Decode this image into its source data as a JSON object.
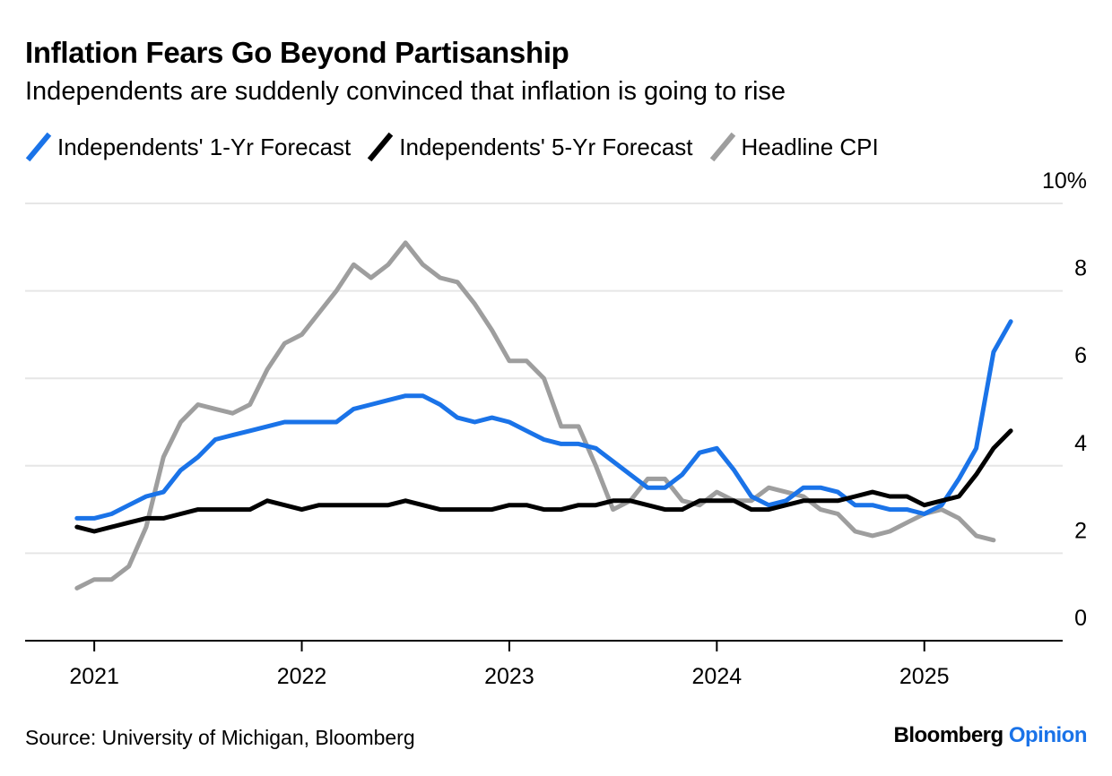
{
  "header": {
    "title": "Inflation Fears Go Beyond Partisanship",
    "subtitle": "Independents are suddenly convinced that inflation is going to rise"
  },
  "footer": {
    "source": "Source: University of Michigan, Bloomberg",
    "brand_main": "Bloomberg",
    "brand_accent": "Opinion"
  },
  "colors": {
    "series_1yr": "#1a73e8",
    "series_5yr": "#000000",
    "series_cpi": "#9e9e9e",
    "gridline": "#e6e6e6",
    "axis": "#000000"
  },
  "chart_data": {
    "type": "line",
    "title": "Inflation Fears Go Beyond Partisanship",
    "subtitle": "Independents are suddenly convinced that inflation is going to rise",
    "xlabel": "",
    "ylabel": "",
    "y_unit_suffix": "%",
    "ylim": [
      0,
      10
    ],
    "y_ticks": [
      0,
      2,
      4,
      6,
      8,
      10
    ],
    "y_tick_labels": [
      "0",
      "2",
      "4",
      "6",
      "8",
      "10%"
    ],
    "y_axis_side": "right",
    "x_ticks": [
      "2021-01",
      "2022-01",
      "2023-01",
      "2024-01",
      "2025-01"
    ],
    "x_tick_labels": [
      "2021",
      "2022",
      "2023",
      "2024",
      "2025"
    ],
    "x_range": [
      "2020-09",
      "2025-09"
    ],
    "grid": "horizontal",
    "legend_position": "top-left",
    "series": [
      {
        "name": "Independents' 1-Yr Forecast",
        "color": "#1a73e8",
        "points": [
          [
            "2020-12",
            2.8
          ],
          [
            "2021-01",
            2.8
          ],
          [
            "2021-02",
            2.9
          ],
          [
            "2021-03",
            3.1
          ],
          [
            "2021-04",
            3.3
          ],
          [
            "2021-05",
            3.4
          ],
          [
            "2021-06",
            3.9
          ],
          [
            "2021-07",
            4.2
          ],
          [
            "2021-08",
            4.6
          ],
          [
            "2021-09",
            4.7
          ],
          [
            "2021-10",
            4.8
          ],
          [
            "2021-11",
            4.9
          ],
          [
            "2021-12",
            5.0
          ],
          [
            "2022-01",
            5.0
          ],
          [
            "2022-02",
            5.0
          ],
          [
            "2022-03",
            5.0
          ],
          [
            "2022-04",
            5.3
          ],
          [
            "2022-05",
            5.4
          ],
          [
            "2022-06",
            5.5
          ],
          [
            "2022-07",
            5.6
          ],
          [
            "2022-08",
            5.6
          ],
          [
            "2022-09",
            5.4
          ],
          [
            "2022-10",
            5.1
          ],
          [
            "2022-11",
            5.0
          ],
          [
            "2022-12",
            5.1
          ],
          [
            "2023-01",
            5.0
          ],
          [
            "2023-02",
            4.8
          ],
          [
            "2023-03",
            4.6
          ],
          [
            "2023-04",
            4.5
          ],
          [
            "2023-05",
            4.5
          ],
          [
            "2023-06",
            4.4
          ],
          [
            "2023-07",
            4.1
          ],
          [
            "2023-08",
            3.8
          ],
          [
            "2023-09",
            3.5
          ],
          [
            "2023-10",
            3.5
          ],
          [
            "2023-11",
            3.8
          ],
          [
            "2023-12",
            4.3
          ],
          [
            "2024-01",
            4.4
          ],
          [
            "2024-02",
            3.9
          ],
          [
            "2024-03",
            3.3
          ],
          [
            "2024-04",
            3.1
          ],
          [
            "2024-05",
            3.2
          ],
          [
            "2024-06",
            3.5
          ],
          [
            "2024-07",
            3.5
          ],
          [
            "2024-08",
            3.4
          ],
          [
            "2024-09",
            3.1
          ],
          [
            "2024-10",
            3.1
          ],
          [
            "2024-11",
            3.0
          ],
          [
            "2024-12",
            3.0
          ],
          [
            "2025-01",
            2.9
          ],
          [
            "2025-02",
            3.1
          ],
          [
            "2025-03",
            3.7
          ],
          [
            "2025-04",
            4.4
          ],
          [
            "2025-05",
            6.6
          ],
          [
            "2025-06",
            7.3
          ]
        ]
      },
      {
        "name": "Independents' 5-Yr Forecast",
        "color": "#000000",
        "points": [
          [
            "2020-12",
            2.6
          ],
          [
            "2021-01",
            2.5
          ],
          [
            "2021-02",
            2.6
          ],
          [
            "2021-03",
            2.7
          ],
          [
            "2021-04",
            2.8
          ],
          [
            "2021-05",
            2.8
          ],
          [
            "2021-06",
            2.9
          ],
          [
            "2021-07",
            3.0
          ],
          [
            "2021-08",
            3.0
          ],
          [
            "2021-09",
            3.0
          ],
          [
            "2021-10",
            3.0
          ],
          [
            "2021-11",
            3.2
          ],
          [
            "2021-12",
            3.1
          ],
          [
            "2022-01",
            3.0
          ],
          [
            "2022-02",
            3.1
          ],
          [
            "2022-03",
            3.1
          ],
          [
            "2022-04",
            3.1
          ],
          [
            "2022-05",
            3.1
          ],
          [
            "2022-06",
            3.1
          ],
          [
            "2022-07",
            3.2
          ],
          [
            "2022-08",
            3.1
          ],
          [
            "2022-09",
            3.0
          ],
          [
            "2022-10",
            3.0
          ],
          [
            "2022-11",
            3.0
          ],
          [
            "2022-12",
            3.0
          ],
          [
            "2023-01",
            3.1
          ],
          [
            "2023-02",
            3.1
          ],
          [
            "2023-03",
            3.0
          ],
          [
            "2023-04",
            3.0
          ],
          [
            "2023-05",
            3.1
          ],
          [
            "2023-06",
            3.1
          ],
          [
            "2023-07",
            3.2
          ],
          [
            "2023-08",
            3.2
          ],
          [
            "2023-09",
            3.1
          ],
          [
            "2023-10",
            3.0
          ],
          [
            "2023-11",
            3.0
          ],
          [
            "2023-12",
            3.2
          ],
          [
            "2024-01",
            3.2
          ],
          [
            "2024-02",
            3.2
          ],
          [
            "2024-03",
            3.0
          ],
          [
            "2024-04",
            3.0
          ],
          [
            "2024-05",
            3.1
          ],
          [
            "2024-06",
            3.2
          ],
          [
            "2024-07",
            3.2
          ],
          [
            "2024-08",
            3.2
          ],
          [
            "2024-09",
            3.3
          ],
          [
            "2024-10",
            3.4
          ],
          [
            "2024-11",
            3.3
          ],
          [
            "2024-12",
            3.3
          ],
          [
            "2025-01",
            3.1
          ],
          [
            "2025-02",
            3.2
          ],
          [
            "2025-03",
            3.3
          ],
          [
            "2025-04",
            3.8
          ],
          [
            "2025-05",
            4.4
          ],
          [
            "2025-06",
            4.8
          ]
        ]
      },
      {
        "name": "Headline CPI",
        "color": "#9e9e9e",
        "points": [
          [
            "2020-12",
            1.2
          ],
          [
            "2021-01",
            1.4
          ],
          [
            "2021-02",
            1.4
          ],
          [
            "2021-03",
            1.7
          ],
          [
            "2021-04",
            2.6
          ],
          [
            "2021-05",
            4.2
          ],
          [
            "2021-06",
            5.0
          ],
          [
            "2021-07",
            5.4
          ],
          [
            "2021-08",
            5.3
          ],
          [
            "2021-09",
            5.2
          ],
          [
            "2021-10",
            5.4
          ],
          [
            "2021-11",
            6.2
          ],
          [
            "2021-12",
            6.8
          ],
          [
            "2022-01",
            7.0
          ],
          [
            "2022-02",
            7.5
          ],
          [
            "2022-03",
            8.0
          ],
          [
            "2022-04",
            8.6
          ],
          [
            "2022-05",
            8.3
          ],
          [
            "2022-06",
            8.6
          ],
          [
            "2022-07",
            9.1
          ],
          [
            "2022-08",
            8.6
          ],
          [
            "2022-09",
            8.3
          ],
          [
            "2022-10",
            8.2
          ],
          [
            "2022-11",
            7.7
          ],
          [
            "2022-12",
            7.1
          ],
          [
            "2023-01",
            6.4
          ],
          [
            "2023-02",
            6.4
          ],
          [
            "2023-03",
            6.0
          ],
          [
            "2023-04",
            4.9
          ],
          [
            "2023-05",
            4.9
          ],
          [
            "2023-06",
            4.0
          ],
          [
            "2023-07",
            3.0
          ],
          [
            "2023-08",
            3.2
          ],
          [
            "2023-09",
            3.7
          ],
          [
            "2023-10",
            3.7
          ],
          [
            "2023-11",
            3.2
          ],
          [
            "2023-12",
            3.1
          ],
          [
            "2024-01",
            3.4
          ],
          [
            "2024-02",
            3.2
          ],
          [
            "2024-03",
            3.2
          ],
          [
            "2024-04",
            3.5
          ],
          [
            "2024-05",
            3.4
          ],
          [
            "2024-06",
            3.3
          ],
          [
            "2024-07",
            3.0
          ],
          [
            "2024-08",
            2.9
          ],
          [
            "2024-09",
            2.5
          ],
          [
            "2024-10",
            2.4
          ],
          [
            "2024-11",
            2.5
          ],
          [
            "2024-12",
            2.7
          ],
          [
            "2025-01",
            2.9
          ],
          [
            "2025-02",
            3.0
          ],
          [
            "2025-03",
            2.8
          ],
          [
            "2025-04",
            2.4
          ],
          [
            "2025-05",
            2.3
          ]
        ]
      }
    ]
  }
}
